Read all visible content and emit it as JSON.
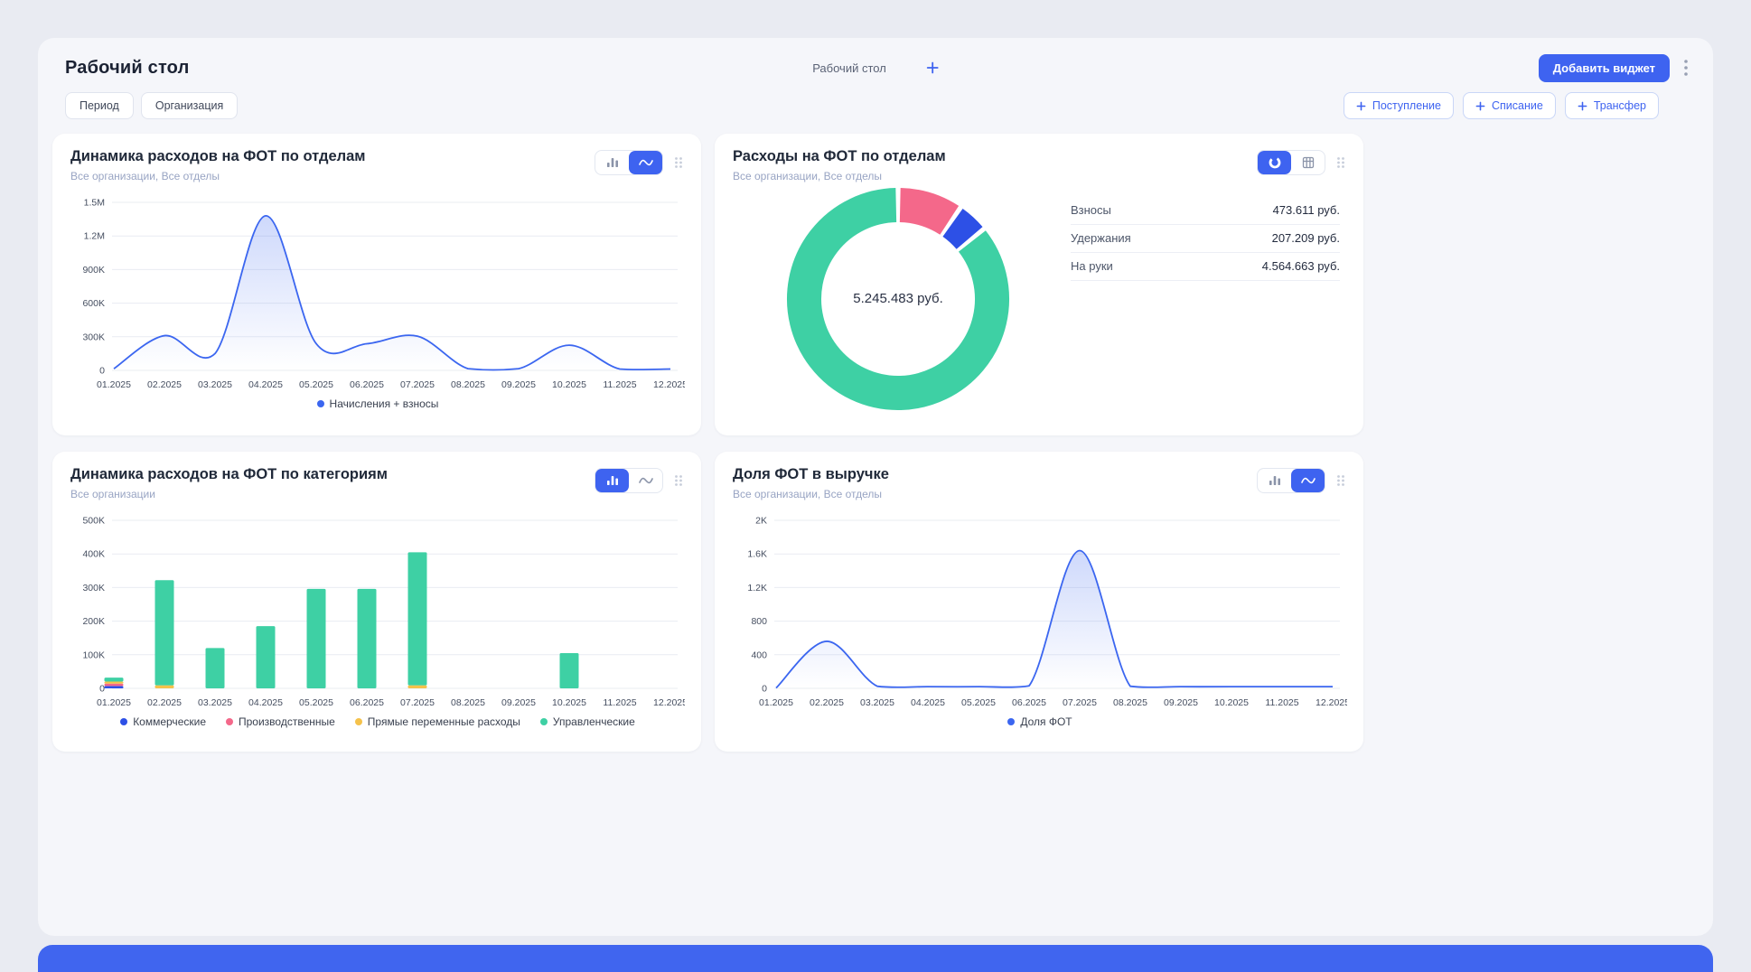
{
  "header": {
    "title": "Рабочий стол",
    "tab": "Рабочий стол",
    "add_widget_label": "Добавить виджет",
    "filters": [
      "Период",
      "Организация"
    ],
    "actions": [
      "Поступление",
      "Списание",
      "Трансфер"
    ]
  },
  "colors": {
    "accent": "#3e63f0",
    "line_blue": "#3b66f0",
    "green": "#3ed0a4",
    "pink": "#f4688a",
    "deep_blue": "#2d50e6",
    "yellow": "#f5c24b"
  },
  "chart_data": [
    {
      "type": "line",
      "title": "Динамика расходов на ФОТ по отделам",
      "subtitle": "Все организации, Все отделы",
      "categories": [
        "01.2025",
        "02.2025",
        "03.2025",
        "04.2025",
        "05.2025",
        "06.2025",
        "07.2025",
        "08.2025",
        "09.2025",
        "10.2025",
        "11.2025",
        "12.2025"
      ],
      "series": [
        {
          "name": "Начисления + взносы",
          "color": "#3b66f0",
          "values": [
            15000,
            310000,
            150000,
            1380000,
            238000,
            238000,
            305000,
            15000,
            15000,
            225000,
            12000,
            12000
          ]
        }
      ],
      "ylim": [
        0,
        1500000
      ],
      "ytick_labels": [
        "0",
        "300K",
        "600K",
        "900K",
        "1.2M",
        "1.5M"
      ],
      "grid": true,
      "legend_position": "bottom"
    },
    {
      "type": "donut",
      "title": "Расходы на ФОТ по отделам",
      "subtitle": "Все организации, Все отделы",
      "center_label": "5.245.483 руб.",
      "slices": [
        {
          "label": "Взносы",
          "value": 473611,
          "display": "473.611 руб.",
          "color": "#f4688a"
        },
        {
          "label": "Удержания",
          "value": 207209,
          "display": "207.209 руб.",
          "color": "#2d50e6"
        },
        {
          "label": "На руки",
          "value": 4564663,
          "display": "4.564.663 руб.",
          "color": "#3ed0a4"
        }
      ]
    },
    {
      "type": "bar",
      "title": "Динамика расходов на ФОТ по категориям",
      "subtitle": "Все организации",
      "categories": [
        "01.2025",
        "02.2025",
        "03.2025",
        "04.2025",
        "05.2025",
        "06.2025",
        "07.2025",
        "08.2025",
        "09.2025",
        "10.2025",
        "11.2025",
        "12.2025"
      ],
      "series": [
        {
          "name": "Коммерческие",
          "color": "#2d50e6",
          "values": [
            7000,
            0,
            0,
            0,
            0,
            0,
            0,
            0,
            0,
            0,
            0,
            0
          ]
        },
        {
          "name": "Производственные",
          "color": "#f4688a",
          "values": [
            7000,
            0,
            0,
            0,
            0,
            0,
            0,
            0,
            0,
            0,
            0,
            0
          ]
        },
        {
          "name": "Прямые переменные расходы",
          "color": "#f5c24b",
          "values": [
            6000,
            9000,
            0,
            0,
            0,
            0,
            9000,
            0,
            0,
            0,
            0,
            0
          ]
        },
        {
          "name": "Управленческие",
          "color": "#3ed0a4",
          "values": [
            12000,
            313000,
            120000,
            185000,
            296000,
            296000,
            396000,
            0,
            0,
            105000,
            0,
            0
          ]
        }
      ],
      "ylim": [
        0,
        500000
      ],
      "ytick_labels": [
        "0",
        "100K",
        "200K",
        "300K",
        "400K",
        "500K"
      ],
      "grid": true,
      "legend_position": "bottom"
    },
    {
      "type": "line",
      "title": "Доля ФОТ в выручке",
      "subtitle": "Все организации, Все отделы",
      "categories": [
        "01.2025",
        "02.2025",
        "03.2025",
        "04.2025",
        "05.2025",
        "06.2025",
        "07.2025",
        "08.2025",
        "09.2025",
        "10.2025",
        "11.2025",
        "12.2025"
      ],
      "series": [
        {
          "name": "Доля ФОТ",
          "color": "#3b66f0",
          "values": [
            5,
            560,
            25,
            20,
            20,
            30,
            1640,
            25,
            20,
            20,
            20,
            20
          ]
        }
      ],
      "ylim": [
        0,
        2000
      ],
      "ytick_labels": [
        "0",
        "400",
        "800",
        "1.2K",
        "1.6K",
        "2K"
      ],
      "grid": true,
      "legend_position": "bottom"
    }
  ]
}
